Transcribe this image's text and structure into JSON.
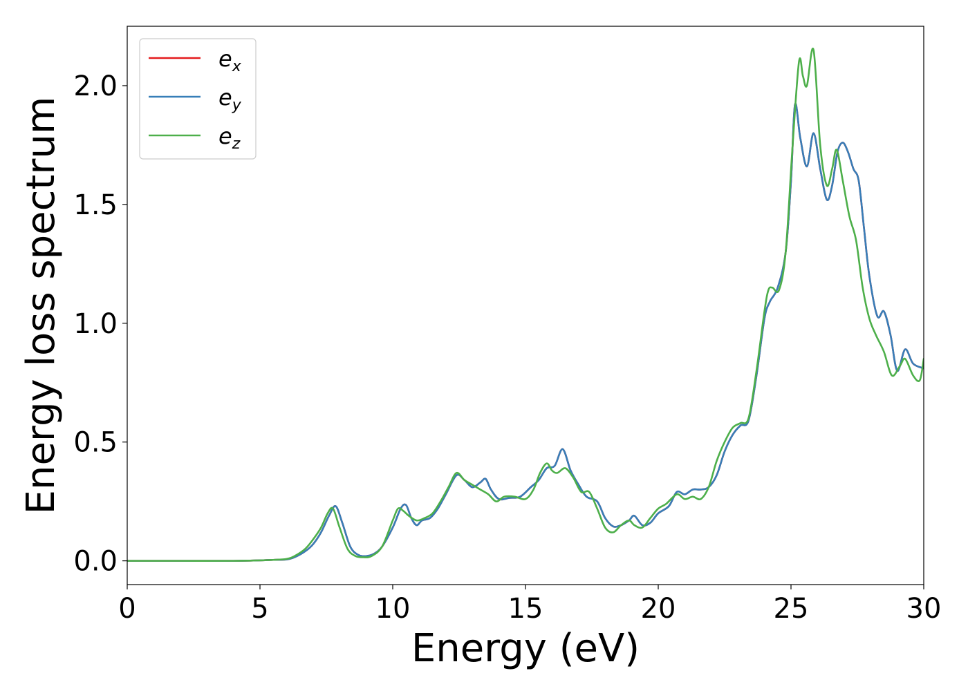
{
  "chart_data": {
    "type": "line",
    "xlabel": "Energy (eV)",
    "ylabel": "Energy loss spectrum",
    "xlim": [
      0,
      30
    ],
    "ylim": [
      -0.1,
      2.25
    ],
    "xticks": [
      0,
      5,
      10,
      15,
      20,
      25,
      30
    ],
    "xtick_labels": [
      "0",
      "5",
      "10",
      "15",
      "20",
      "25",
      "30"
    ],
    "yticks": [
      0.0,
      0.5,
      1.0,
      1.5,
      2.0
    ],
    "ytick_labels": [
      "0.0",
      "0.5",
      "1.0",
      "1.5",
      "2.0"
    ],
    "grid": false,
    "legend_position": "upper-left",
    "series": [
      {
        "name": "e_x",
        "label_base": "e",
        "label_sub": "x",
        "color": "#e41a1c",
        "x": [
          0,
          2,
          4,
          5,
          5.5,
          6,
          6.3,
          6.7,
          7.0,
          7.3,
          7.6,
          7.85,
          8.1,
          8.4,
          8.7,
          9.0,
          9.3,
          9.6,
          10.0,
          10.3,
          10.5,
          10.7,
          10.9,
          11.1,
          11.4,
          11.7,
          12.0,
          12.4,
          12.7,
          13.0,
          13.3,
          13.5,
          13.7,
          14.0,
          14.4,
          14.8,
          15.2,
          15.5,
          15.8,
          16.1,
          16.4,
          16.7,
          17.0,
          17.3,
          17.7,
          18.0,
          18.3,
          18.6,
          18.9,
          19.1,
          19.4,
          19.7,
          20.0,
          20.4,
          20.7,
          21.0,
          21.3,
          21.6,
          21.9,
          22.2,
          22.5,
          22.8,
          23.1,
          23.4,
          23.7,
          24.0,
          24.2,
          24.5,
          24.8,
          25.0,
          25.15,
          25.35,
          25.6,
          25.85,
          26.1,
          26.35,
          26.55,
          26.75,
          26.95,
          27.15,
          27.35,
          27.55,
          27.75,
          27.95,
          28.25,
          28.5,
          28.75,
          29.0,
          29.3,
          29.6,
          30.0
        ],
        "y": [
          0.0,
          0.0,
          0.0,
          0.002,
          0.004,
          0.006,
          0.015,
          0.04,
          0.07,
          0.12,
          0.19,
          0.23,
          0.16,
          0.06,
          0.025,
          0.02,
          0.03,
          0.06,
          0.14,
          0.22,
          0.235,
          0.18,
          0.15,
          0.17,
          0.18,
          0.22,
          0.28,
          0.36,
          0.34,
          0.31,
          0.33,
          0.345,
          0.3,
          0.26,
          0.265,
          0.27,
          0.31,
          0.34,
          0.39,
          0.4,
          0.47,
          0.38,
          0.32,
          0.27,
          0.25,
          0.18,
          0.145,
          0.15,
          0.17,
          0.19,
          0.15,
          0.16,
          0.2,
          0.23,
          0.29,
          0.28,
          0.3,
          0.3,
          0.31,
          0.36,
          0.46,
          0.53,
          0.57,
          0.59,
          0.78,
          1.02,
          1.09,
          1.15,
          1.3,
          1.6,
          1.92,
          1.78,
          1.66,
          1.8,
          1.65,
          1.52,
          1.58,
          1.72,
          1.76,
          1.72,
          1.65,
          1.6,
          1.4,
          1.2,
          1.03,
          1.05,
          0.95,
          0.8,
          0.89,
          0.83,
          0.81
        ]
      },
      {
        "name": "e_y",
        "label_base": "e",
        "label_sub": "y",
        "color": "#377eb8",
        "x": [
          0,
          2,
          4,
          5,
          5.5,
          6,
          6.3,
          6.7,
          7.0,
          7.3,
          7.6,
          7.85,
          8.1,
          8.4,
          8.7,
          9.0,
          9.3,
          9.6,
          10.0,
          10.3,
          10.5,
          10.7,
          10.9,
          11.1,
          11.4,
          11.7,
          12.0,
          12.4,
          12.7,
          13.0,
          13.3,
          13.5,
          13.7,
          14.0,
          14.4,
          14.8,
          15.2,
          15.5,
          15.8,
          16.1,
          16.4,
          16.7,
          17.0,
          17.3,
          17.7,
          18.0,
          18.3,
          18.6,
          18.9,
          19.1,
          19.4,
          19.7,
          20.0,
          20.4,
          20.7,
          21.0,
          21.3,
          21.6,
          21.9,
          22.2,
          22.5,
          22.8,
          23.1,
          23.4,
          23.7,
          24.0,
          24.2,
          24.5,
          24.8,
          25.0,
          25.15,
          25.35,
          25.6,
          25.85,
          26.1,
          26.35,
          26.55,
          26.75,
          26.95,
          27.15,
          27.35,
          27.55,
          27.75,
          27.95,
          28.25,
          28.5,
          28.75,
          29.0,
          29.3,
          29.6,
          30.0
        ],
        "y": [
          0.0,
          0.0,
          0.0,
          0.002,
          0.004,
          0.006,
          0.015,
          0.04,
          0.07,
          0.12,
          0.19,
          0.23,
          0.16,
          0.06,
          0.025,
          0.02,
          0.03,
          0.06,
          0.14,
          0.22,
          0.235,
          0.18,
          0.15,
          0.17,
          0.18,
          0.22,
          0.28,
          0.36,
          0.34,
          0.31,
          0.33,
          0.345,
          0.3,
          0.26,
          0.265,
          0.27,
          0.31,
          0.34,
          0.39,
          0.4,
          0.47,
          0.38,
          0.32,
          0.27,
          0.25,
          0.18,
          0.145,
          0.15,
          0.17,
          0.19,
          0.15,
          0.16,
          0.2,
          0.23,
          0.29,
          0.28,
          0.3,
          0.3,
          0.31,
          0.36,
          0.46,
          0.53,
          0.57,
          0.59,
          0.78,
          1.02,
          1.09,
          1.15,
          1.3,
          1.6,
          1.92,
          1.78,
          1.66,
          1.8,
          1.65,
          1.52,
          1.58,
          1.72,
          1.76,
          1.72,
          1.65,
          1.6,
          1.4,
          1.2,
          1.03,
          1.05,
          0.95,
          0.8,
          0.89,
          0.83,
          0.81
        ]
      },
      {
        "name": "e_z",
        "label_base": "e",
        "label_sub": "z",
        "color": "#4daf4a",
        "x": [
          0,
          2,
          4,
          5,
          5.5,
          6,
          6.3,
          6.7,
          7.0,
          7.3,
          7.55,
          7.75,
          8.0,
          8.3,
          8.6,
          8.9,
          9.2,
          9.6,
          10.0,
          10.2,
          10.4,
          10.6,
          10.9,
          11.2,
          11.5,
          11.8,
          12.1,
          12.4,
          12.7,
          13.0,
          13.3,
          13.6,
          13.9,
          14.2,
          14.6,
          15.0,
          15.3,
          15.55,
          15.8,
          16.0,
          16.2,
          16.5,
          16.8,
          17.1,
          17.4,
          17.7,
          18.0,
          18.3,
          18.6,
          18.9,
          19.1,
          19.4,
          19.7,
          20.0,
          20.3,
          20.7,
          21.0,
          21.3,
          21.6,
          21.9,
          22.2,
          22.5,
          22.8,
          23.1,
          23.4,
          23.7,
          24.0,
          24.15,
          24.3,
          24.55,
          24.8,
          25.05,
          25.3,
          25.45,
          25.6,
          25.85,
          26.1,
          26.35,
          26.55,
          26.72,
          26.95,
          27.2,
          27.45,
          27.7,
          27.95,
          28.2,
          28.5,
          28.8,
          29.1,
          29.3,
          29.6,
          29.85,
          30.0
        ],
        "y": [
          0.0,
          0.0,
          0.0,
          0.002,
          0.004,
          0.008,
          0.02,
          0.05,
          0.09,
          0.14,
          0.2,
          0.22,
          0.14,
          0.05,
          0.02,
          0.015,
          0.02,
          0.06,
          0.17,
          0.22,
          0.21,
          0.19,
          0.17,
          0.18,
          0.2,
          0.25,
          0.31,
          0.37,
          0.34,
          0.32,
          0.3,
          0.28,
          0.25,
          0.27,
          0.27,
          0.26,
          0.3,
          0.37,
          0.41,
          0.38,
          0.37,
          0.39,
          0.35,
          0.29,
          0.29,
          0.22,
          0.14,
          0.12,
          0.15,
          0.17,
          0.15,
          0.14,
          0.18,
          0.22,
          0.24,
          0.28,
          0.26,
          0.27,
          0.26,
          0.31,
          0.42,
          0.5,
          0.56,
          0.58,
          0.6,
          0.8,
          1.05,
          1.14,
          1.15,
          1.14,
          1.3,
          1.73,
          2.1,
          2.04,
          2.0,
          2.15,
          1.75,
          1.58,
          1.65,
          1.73,
          1.6,
          1.45,
          1.35,
          1.15,
          1.02,
          0.95,
          0.88,
          0.78,
          0.82,
          0.85,
          0.78,
          0.76,
          0.85
        ]
      }
    ]
  }
}
